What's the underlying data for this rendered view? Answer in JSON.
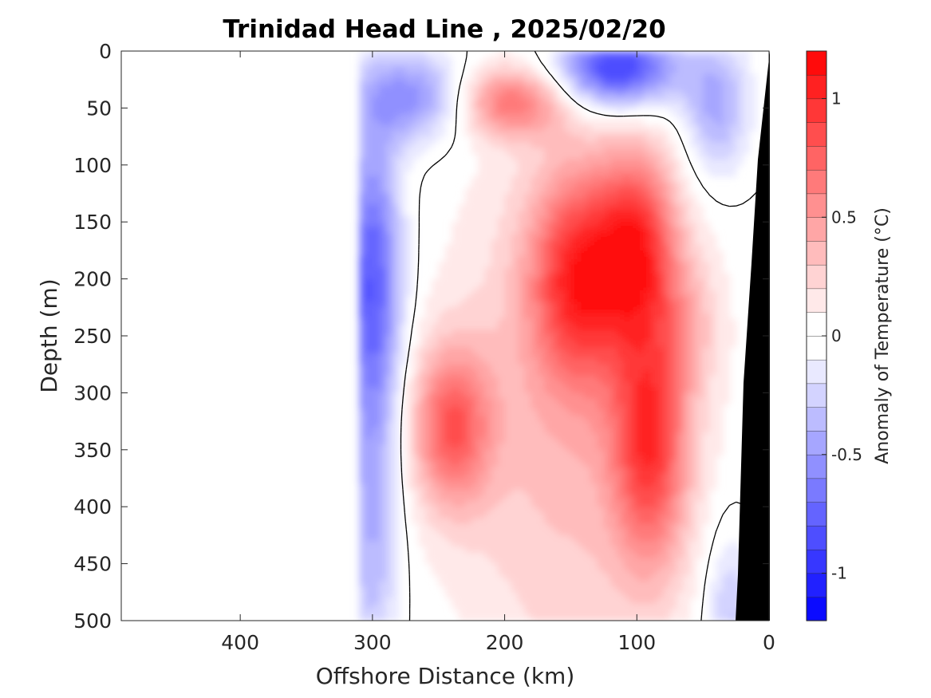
{
  "chart_data": {
    "type": "heatmap",
    "title": "Trinidad Head Line , 2025/02/20",
    "xlabel": "Offshore Distance (km)",
    "ylabel": "Depth (m)",
    "xlim": [
      490,
      0
    ],
    "ylim": [
      0,
      500
    ],
    "x_direction": "reversed",
    "y_direction": "reversed (depth increasing downward)",
    "xticks": [
      "400",
      "300",
      "200",
      "100",
      "0"
    ],
    "yticks": [
      "0",
      "50",
      "100",
      "150",
      "200",
      "250",
      "300",
      "350",
      "400",
      "450",
      "500"
    ],
    "grid": false,
    "data_extent_km": [
      310,
      0
    ],
    "colorbar": {
      "label": "Anomaly of Temperature (°C)",
      "range": [
        -1.2,
        1.2
      ],
      "levels": 24,
      "ticks": [
        "1",
        "0.5",
        "0",
        "-0.5",
        "-1"
      ],
      "colormap": "blue-white-red",
      "colors": {
        "cold": "#0000ff",
        "zero": "#ffffff",
        "warm": "#ff0000"
      }
    },
    "features": [
      {
        "kind": "warm",
        "center_km": 195,
        "center_m": 45,
        "peak": 0.6
      },
      {
        "kind": "warm",
        "center_km": 145,
        "center_m": 200,
        "peak": 0.8
      },
      {
        "kind": "warm",
        "center_km": 100,
        "center_m": 170,
        "peak": 0.8
      },
      {
        "kind": "warm",
        "center_km": 90,
        "center_m": 340,
        "peak": 0.8
      },
      {
        "kind": "warm",
        "center_km": 240,
        "center_m": 330,
        "peak": 0.7
      },
      {
        "kind": "cold",
        "center_km": 115,
        "center_m": 15,
        "peak": -1.0
      },
      {
        "kind": "cold",
        "center_km": 300,
        "center_m": 200,
        "peak": -0.8
      }
    ],
    "seafloor": "black wedge near 0-25 km (continental shelf/slope)"
  }
}
